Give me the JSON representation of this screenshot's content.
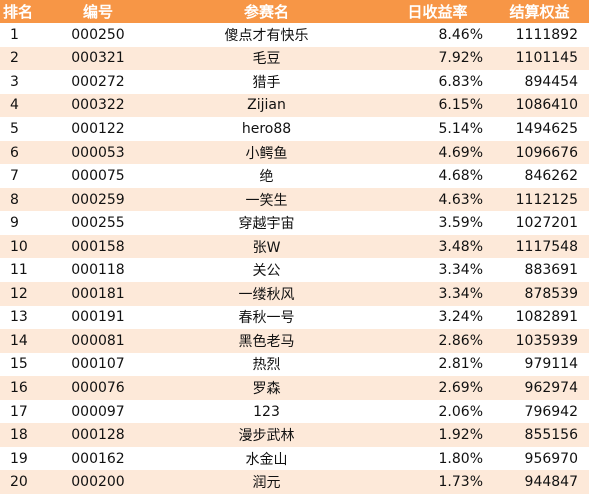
{
  "table": {
    "headers": {
      "rank": "排名",
      "code": "编号",
      "name": "参赛名",
      "daily_return": "日收益率",
      "settled_equity": "结算权益"
    },
    "rows": [
      {
        "rank": "1",
        "code": "000250",
        "name": "傻点才有快乐",
        "daily_return": "8.46%",
        "settled_equity": "1111892"
      },
      {
        "rank": "2",
        "code": "000321",
        "name": "毛豆",
        "daily_return": "7.92%",
        "settled_equity": "1101145"
      },
      {
        "rank": "3",
        "code": "000272",
        "name": "猎手",
        "daily_return": "6.83%",
        "settled_equity": "894454"
      },
      {
        "rank": "4",
        "code": "000322",
        "name": "Zijian",
        "daily_return": "6.15%",
        "settled_equity": "1086410"
      },
      {
        "rank": "5",
        "code": "000122",
        "name": "hero88",
        "daily_return": "5.14%",
        "settled_equity": "1494625"
      },
      {
        "rank": "6",
        "code": "000053",
        "name": "小鳄鱼",
        "daily_return": "4.69%",
        "settled_equity": "1096676"
      },
      {
        "rank": "7",
        "code": "000075",
        "name": "绝",
        "daily_return": "4.68%",
        "settled_equity": "846262"
      },
      {
        "rank": "8",
        "code": "000259",
        "name": "一笑生",
        "daily_return": "4.63%",
        "settled_equity": "1112125"
      },
      {
        "rank": "9",
        "code": "000255",
        "name": "穿越宇宙",
        "daily_return": "3.59%",
        "settled_equity": "1027201"
      },
      {
        "rank": "10",
        "code": "000158",
        "name": "张W",
        "daily_return": "3.48%",
        "settled_equity": "1117548"
      },
      {
        "rank": "11",
        "code": "000118",
        "name": "关公",
        "daily_return": "3.34%",
        "settled_equity": "883691"
      },
      {
        "rank": "12",
        "code": "000181",
        "name": "一缕秋风",
        "daily_return": "3.34%",
        "settled_equity": "878539"
      },
      {
        "rank": "13",
        "code": "000191",
        "name": "春秋一号",
        "daily_return": "3.24%",
        "settled_equity": "1082891"
      },
      {
        "rank": "14",
        "code": "000081",
        "name": "黑色老马",
        "daily_return": "2.86%",
        "settled_equity": "1035939"
      },
      {
        "rank": "15",
        "code": "000107",
        "name": "热烈",
        "daily_return": "2.81%",
        "settled_equity": "979114"
      },
      {
        "rank": "16",
        "code": "000076",
        "name": "罗森",
        "daily_return": "2.69%",
        "settled_equity": "962974"
      },
      {
        "rank": "17",
        "code": "000097",
        "name": "123",
        "daily_return": "2.06%",
        "settled_equity": "796942"
      },
      {
        "rank": "18",
        "code": "000128",
        "name": "漫步武林",
        "daily_return": "1.92%",
        "settled_equity": "855156"
      },
      {
        "rank": "19",
        "code": "000162",
        "name": "水金山",
        "daily_return": "1.80%",
        "settled_equity": "956970"
      },
      {
        "rank": "20",
        "code": "000200",
        "name": "润元",
        "daily_return": "1.73%",
        "settled_equity": "944847"
      }
    ]
  },
  "colors": {
    "header_bg": "#f79646",
    "header_text": "#ffffff",
    "row_even_bg": "#fde9d9",
    "row_odd_bg": "#ffffff"
  }
}
